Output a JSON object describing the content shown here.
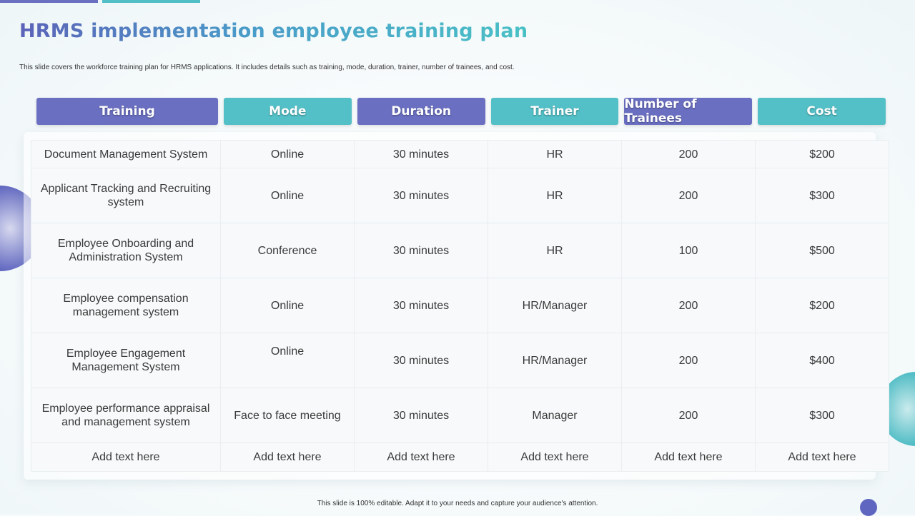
{
  "title": "HRMS implementation employee training plan",
  "subtitle": "This slide covers the workforce training plan for HRMS  applications. It includes details such as training, mode, duration, trainer, number of trainees, and cost.",
  "table": {
    "headers": [
      "Training",
      "Mode",
      "Duration",
      "Trainer",
      "Number of Trainees",
      "Cost"
    ],
    "header_colors": [
      "#6a6fc1",
      "#53bfc6",
      "#6a6fc1",
      "#53bfc6",
      "#6a6fc1",
      "#53bfc6"
    ],
    "rows": [
      [
        "Document Management System",
        "Online",
        "30 minutes",
        "HR",
        "200",
        "$200"
      ],
      [
        "Applicant Tracking and Recruiting system",
        "Online",
        "30 minutes",
        "HR",
        "200",
        "$300"
      ],
      [
        "Employee Onboarding and Administration System",
        "Conference",
        "30 minutes",
        "HR",
        "100",
        "$500"
      ],
      [
        "Employee compensation management system",
        "Online",
        "30 minutes",
        "HR/Manager",
        "200",
        "$200"
      ],
      [
        "Employee Engagement Management System",
        "Online",
        "30 minutes",
        "HR/Manager",
        "200",
        "$400"
      ],
      [
        "Employee performance appraisal and management system",
        "Face to face meeting",
        "30 minutes",
        "Manager",
        "200",
        "$300"
      ],
      [
        "Add text here",
        "Add text here",
        "Add text here",
        "Add text here",
        "Add text here",
        "Add text here"
      ]
    ]
  },
  "footer": "This slide is 100% editable.  Adapt it to your needs and capture your audience's attention.",
  "colors": {
    "accent_purple": "#6a6fc1",
    "accent_teal": "#53bfc6"
  }
}
